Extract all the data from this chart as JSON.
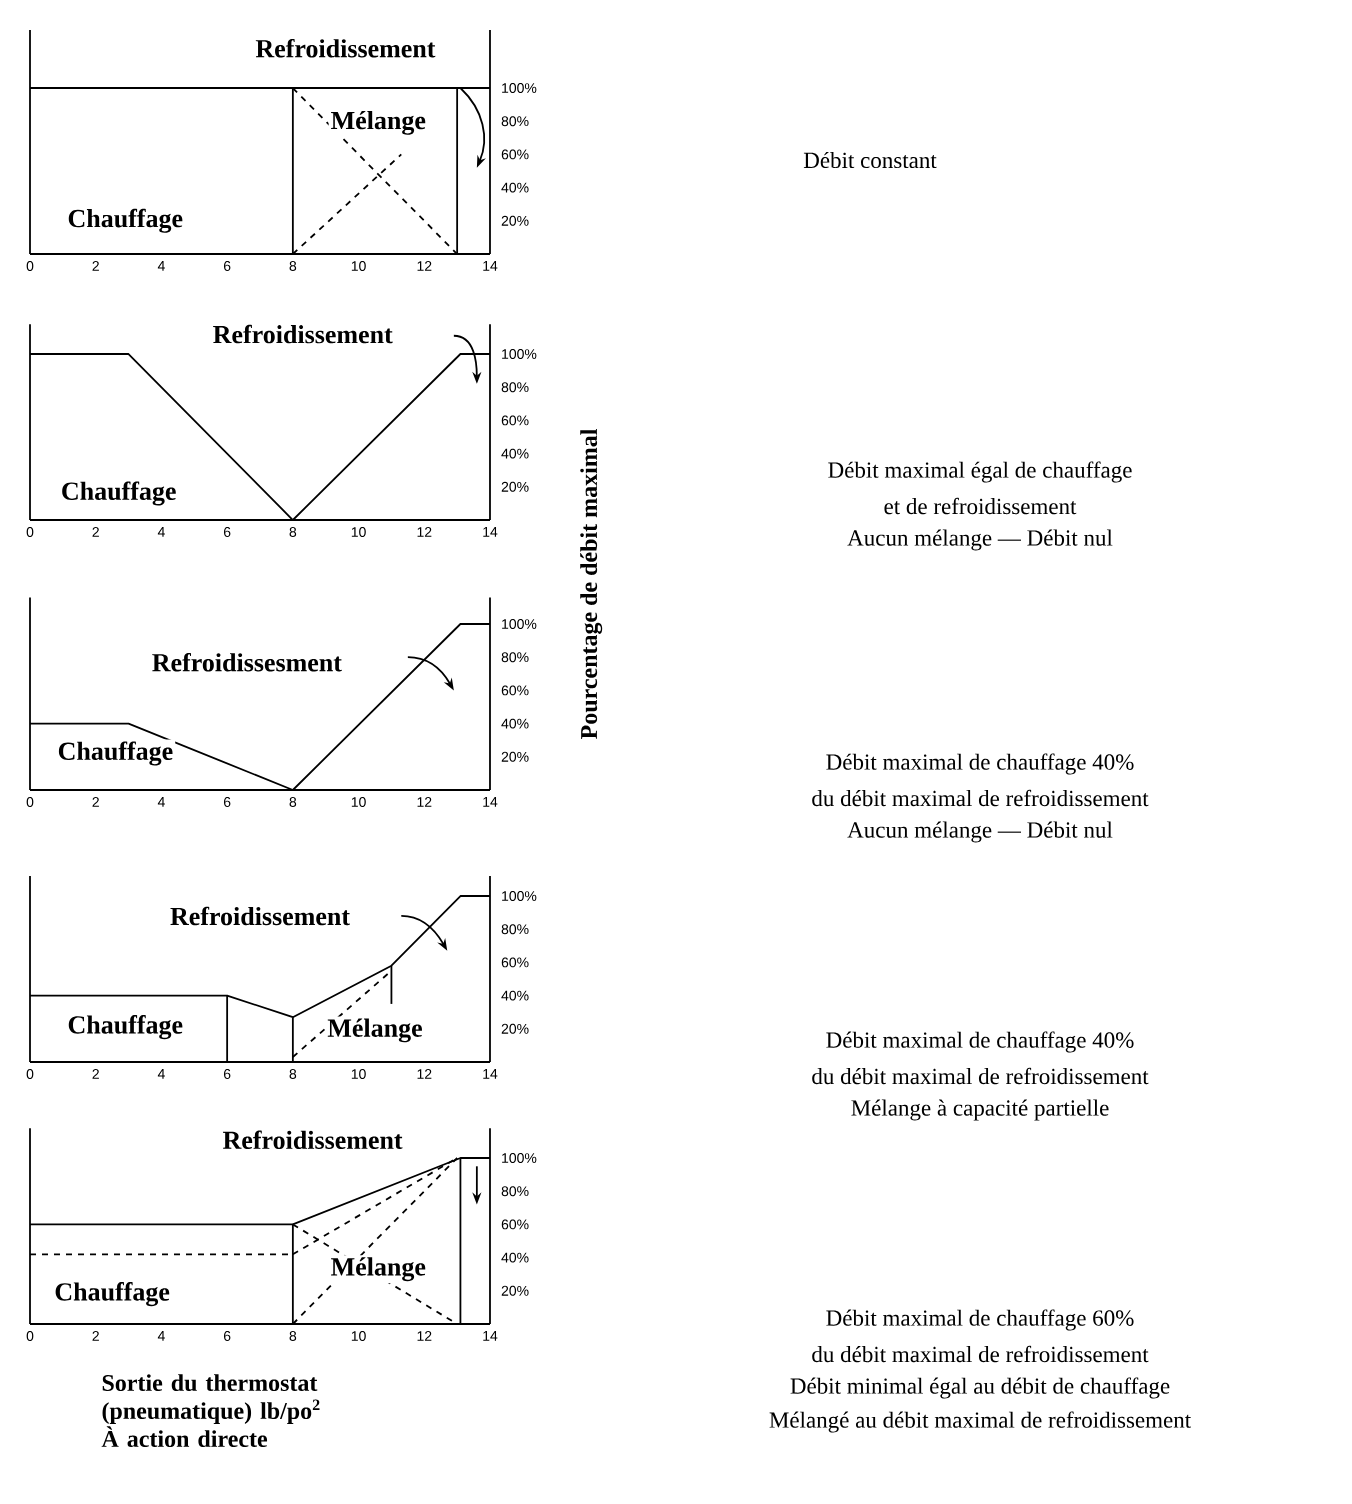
{
  "chart_data": [
    {
      "type": "line",
      "xlim": [
        0,
        14
      ],
      "ylim": [
        0,
        135
      ],
      "xticks": [
        0,
        2,
        4,
        6,
        8,
        10,
        12,
        14
      ],
      "yticks": [
        {
          "value": 20,
          "label": "20%"
        },
        {
          "value": 40,
          "label": "40%"
        },
        {
          "value": 60,
          "label": "60%"
        },
        {
          "value": 80,
          "label": "80%"
        },
        {
          "value": 100,
          "label": "100%"
        }
      ],
      "series": [
        {
          "color": "#000000",
          "x": [
            0,
            8,
            8
          ],
          "values": [
            100,
            100,
            0
          ]
        },
        {
          "color": "#000000",
          "x": [
            8,
            14
          ],
          "values": [
            100,
            100
          ]
        },
        {
          "color": "#000000",
          "x": [
            13,
            13
          ],
          "values": [
            100,
            0
          ]
        },
        {
          "color": "#000000",
          "x": [
            8,
            13
          ],
          "values": [
            100,
            0
          ],
          "line_style": "dashed"
        },
        {
          "color": "#000000",
          "x": [
            8,
            11.3
          ],
          "values": [
            0,
            60
          ],
          "line_style": "dashed"
        }
      ],
      "annotations": [
        "Refroidissement",
        "Mélange",
        "Chauffage",
        "Débit constant"
      ]
    },
    {
      "type": "line",
      "xlim": [
        0,
        14
      ],
      "ylim": [
        0,
        118
      ],
      "xticks": [
        0,
        2,
        4,
        6,
        8,
        10,
        12,
        14
      ],
      "yticks": [
        {
          "value": 20,
          "label": "20%"
        },
        {
          "value": 40,
          "label": "40%"
        },
        {
          "value": 60,
          "label": "60%"
        },
        {
          "value": 80,
          "label": "80%"
        },
        {
          "value": 100,
          "label": "100%"
        }
      ],
      "series": [
        {
          "color": "#000000",
          "x": [
            0,
            3,
            8
          ],
          "values": [
            100,
            100,
            0
          ]
        },
        {
          "color": "#000000",
          "x": [
            8,
            13.1,
            14
          ],
          "values": [
            0,
            100,
            100
          ]
        }
      ],
      "annotations": [
        "Refroidissement",
        "Chauffage",
        "Débit maximal égal de chauffage",
        "et de refroidissement",
        "Aucun mélange — Débit nul"
      ]
    },
    {
      "type": "line",
      "xlim": [
        0,
        14
      ],
      "ylim": [
        0,
        116
      ],
      "xticks": [
        0,
        2,
        4,
        6,
        8,
        10,
        12,
        14
      ],
      "yticks": [
        {
          "value": 20,
          "label": "20%"
        },
        {
          "value": 40,
          "label": "40%"
        },
        {
          "value": 60,
          "label": "60%"
        },
        {
          "value": 80,
          "label": "80%"
        },
        {
          "value": 100,
          "label": "100%"
        }
      ],
      "ylabel": "Pourcentage de débit maximal",
      "series": [
        {
          "color": "#000000",
          "x": [
            0,
            3,
            8
          ],
          "values": [
            40,
            40,
            0
          ]
        },
        {
          "color": "#000000",
          "x": [
            8,
            13.1,
            14
          ],
          "values": [
            0,
            100,
            100
          ]
        }
      ],
      "annotations": [
        "Refroidissesment",
        "Chauffage",
        "Débit maximal de chauffage 40%",
        "du débit maximal de refroidissement",
        "Aucun mélange — Débit nul"
      ]
    },
    {
      "type": "line",
      "xlim": [
        0,
        14
      ],
      "ylim": [
        0,
        112
      ],
      "xticks": [
        0,
        2,
        4,
        6,
        8,
        10,
        12,
        14
      ],
      "yticks": [
        {
          "value": 20,
          "label": "20%"
        },
        {
          "value": 40,
          "label": "40%"
        },
        {
          "value": 60,
          "label": "60%"
        },
        {
          "value": 80,
          "label": "80%"
        },
        {
          "value": 100,
          "label": "100%"
        }
      ],
      "series": [
        {
          "color": "#000000",
          "x": [
            0,
            6,
            6
          ],
          "values": [
            40,
            40,
            0
          ]
        },
        {
          "color": "#000000",
          "x": [
            6,
            8,
            8
          ],
          "values": [
            40,
            27,
            0
          ]
        },
        {
          "color": "#000000",
          "x": [
            8,
            11,
            13.1,
            14
          ],
          "values": [
            27,
            58,
            100,
            100
          ]
        },
        {
          "color": "#000000",
          "x": [
            11,
            11
          ],
          "values": [
            58,
            35
          ]
        },
        {
          "color": "#000000",
          "x": [
            8,
            11
          ],
          "values": [
            3,
            55
          ],
          "line_style": "dashed"
        }
      ],
      "annotations": [
        "Refroidissement",
        "Chauffage",
        "Mélange",
        "Débit maximal de chauffage 40%",
        "du débit maximal de refroidissement",
        "Mélange à capacité partielle"
      ]
    },
    {
      "type": "line",
      "xlim": [
        0,
        14
      ],
      "ylim": [
        0,
        118
      ],
      "xticks": [
        0,
        2,
        4,
        6,
        8,
        10,
        12,
        14
      ],
      "yticks": [
        {
          "value": 20,
          "label": "20%"
        },
        {
          "value": 40,
          "label": "40%"
        },
        {
          "value": 60,
          "label": "60%"
        },
        {
          "value": 80,
          "label": "80%"
        },
        {
          "value": 100,
          "label": "100%"
        }
      ],
      "xlabel": "Sortie du thermostat (pneumatique) lb/po$^{2}$ À action directe",
      "series": [
        {
          "color": "#000000",
          "x": [
            0,
            8,
            8
          ],
          "values": [
            60,
            60,
            0
          ]
        },
        {
          "color": "#000000",
          "x": [
            8,
            13.1,
            14
          ],
          "values": [
            60,
            100,
            100
          ]
        },
        {
          "color": "#000000",
          "x": [
            13.1,
            13.1
          ],
          "values": [
            100,
            0
          ]
        },
        {
          "color": "#000000",
          "x": [
            0,
            8
          ],
          "values": [
            42,
            42
          ],
          "line_style": "dashed"
        },
        {
          "color": "#000000",
          "x": [
            8,
            13
          ],
          "values": [
            60,
            0
          ],
          "line_style": "dashed"
        },
        {
          "color": "#000000",
          "x": [
            8,
            13
          ],
          "values": [
            0,
            100
          ],
          "line_style": "dashed"
        },
        {
          "color": "#000000",
          "x": [
            8,
            13
          ],
          "values": [
            42,
            100
          ],
          "line_style": "dashed"
        }
      ],
      "annotations": [
        "Refroidissement",
        "Chauffage",
        "Mélange",
        "Débit maximal de chauffage 60%",
        "du débit maximal de refroidissement",
        "Débit minimal égal au débit de chauffage",
        "Mélangé au débit maximal de refroidissement"
      ]
    }
  ]
}
